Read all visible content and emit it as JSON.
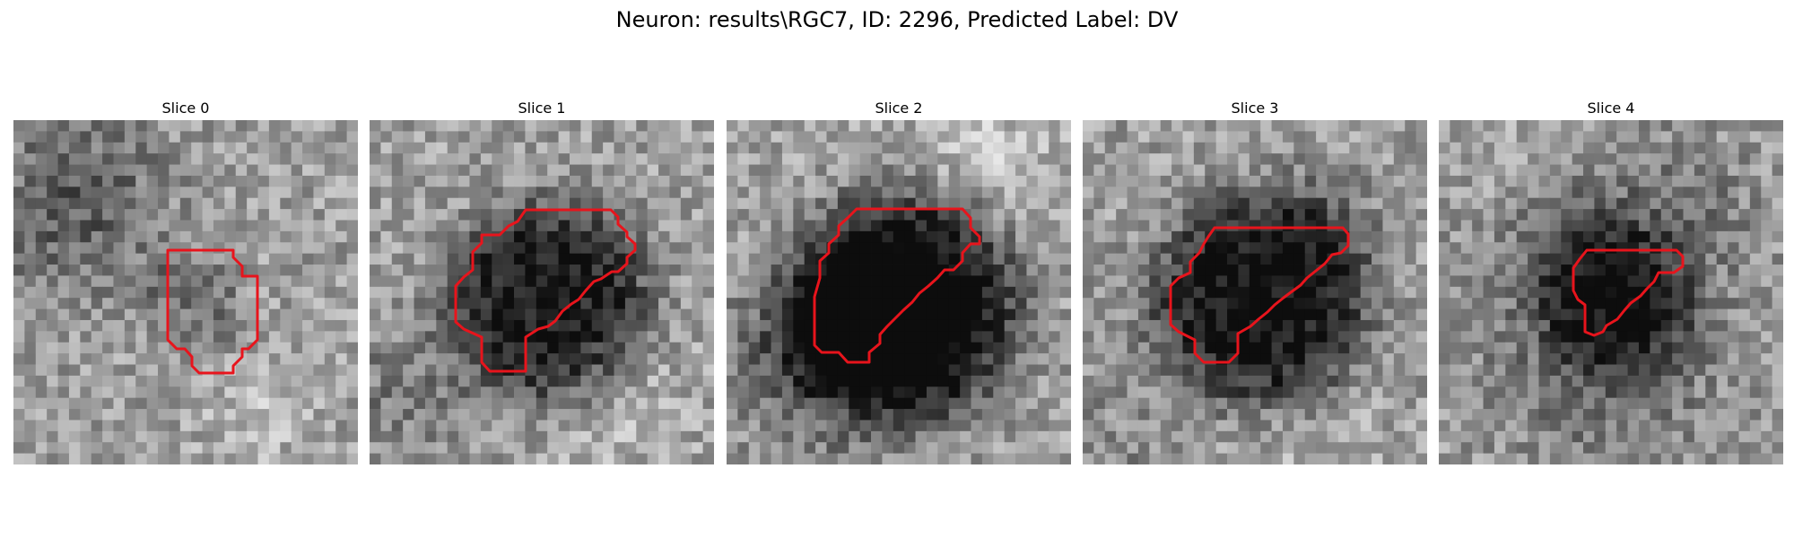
{
  "figure": {
    "suptitle": "Neuron: results\\RGC7, ID: 2296, Predicted Label: DV"
  },
  "panels": [
    {
      "title": "Slice 0",
      "seed": 11,
      "dark_strength": 0.18,
      "dark_radius": 0.16
    },
    {
      "title": "Slice 1",
      "seed": 23,
      "dark_strength": 0.55,
      "dark_radius": 0.3
    },
    {
      "title": "Slice 2",
      "seed": 37,
      "dark_strength": 0.68,
      "dark_radius": 0.33
    },
    {
      "title": "Slice 3",
      "seed": 41,
      "dark_strength": 0.58,
      "dark_radius": 0.32
    },
    {
      "title": "Slice 4",
      "seed": 53,
      "dark_strength": 0.35,
      "dark_radius": 0.22
    }
  ],
  "colors": {
    "contour": "#e8141c"
  }
}
